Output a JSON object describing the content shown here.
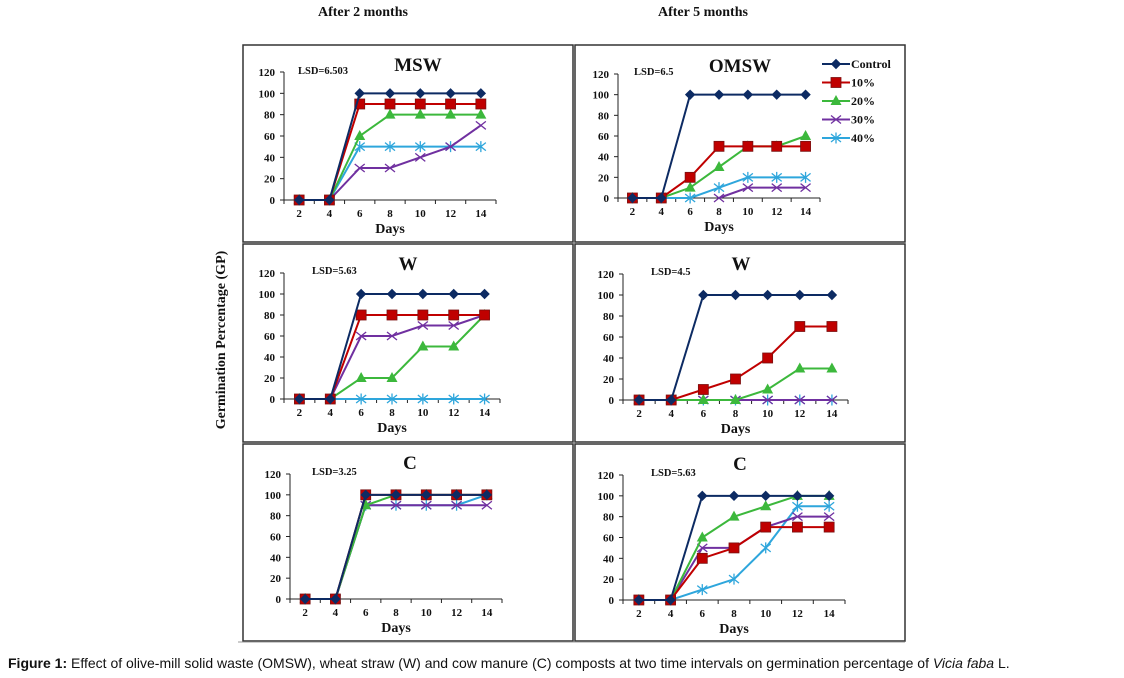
{
  "headers": {
    "left": "After 2 months",
    "right": "After 5 months"
  },
  "shared_ylabel": "Germination Percentage (GP)",
  "caption": {
    "label": "Figure 1:",
    "text_before_italic": " Effect of olive-mill solid waste (OMSW), wheat straw (W) and cow    manure (C) composts at two time intervals on germination percentage of ",
    "italic": "Vicia faba",
    "text_after_italic": " L."
  },
  "legend": {
    "placement": "top-right of OMSW panel",
    "entries": [
      "Control",
      "10%",
      "20%",
      "30%",
      "40%"
    ]
  },
  "series_styles": [
    {
      "name": "Control",
      "color": "#0d2b63",
      "marker": "diamond"
    },
    {
      "name": "10%",
      "color": "#c00000",
      "marker": "square"
    },
    {
      "name": "20%",
      "color": "#3cb83c",
      "marker": "triangle"
    },
    {
      "name": "30%",
      "color": "#7030a0",
      "marker": "x"
    },
    {
      "name": "40%",
      "color": "#2ea6dc",
      "marker": "star"
    }
  ],
  "chart_data": [
    {
      "type": "line",
      "panel": "top-left",
      "period": "After 2 months",
      "title": "MSW",
      "annotation": "LSD=6.503",
      "xlabel": "Days",
      "ylabel": "Germination Percentage (GP)",
      "x": [
        2,
        4,
        6,
        8,
        10,
        12,
        14
      ],
      "ylim": [
        0,
        120
      ],
      "yticks": [
        0,
        20,
        40,
        60,
        80,
        100,
        120
      ],
      "series": [
        {
          "name": "Control",
          "values": [
            0,
            0,
            100,
            100,
            100,
            100,
            100
          ]
        },
        {
          "name": "10%",
          "values": [
            0,
            0,
            90,
            90,
            90,
            90,
            90
          ]
        },
        {
          "name": "20%",
          "values": [
            0,
            0,
            60,
            80,
            80,
            80,
            80
          ]
        },
        {
          "name": "30%",
          "values": [
            0,
            0,
            30,
            30,
            40,
            50,
            70
          ]
        },
        {
          "name": "40%",
          "values": [
            0,
            0,
            50,
            50,
            50,
            50,
            50
          ]
        }
      ]
    },
    {
      "type": "line",
      "panel": "top-right",
      "period": "After 5 months",
      "title": "OMSW",
      "annotation": "LSD=6.5",
      "xlabel": "Days",
      "ylabel": "Germination Percentage (GP)",
      "x": [
        2,
        4,
        6,
        8,
        10,
        12,
        14
      ],
      "ylim": [
        0,
        120
      ],
      "yticks": [
        0,
        20,
        40,
        60,
        80,
        100,
        120
      ],
      "series": [
        {
          "name": "Control",
          "values": [
            0,
            0,
            100,
            100,
            100,
            100,
            100
          ]
        },
        {
          "name": "10%",
          "values": [
            0,
            0,
            20,
            50,
            50,
            50,
            50
          ]
        },
        {
          "name": "20%",
          "values": [
            0,
            0,
            10,
            30,
            50,
            50,
            60
          ]
        },
        {
          "name": "30%",
          "values": [
            null,
            null,
            null,
            0,
            10,
            10,
            10
          ]
        },
        {
          "name": "40%",
          "values": [
            0,
            0,
            0,
            10,
            20,
            20,
            20
          ]
        }
      ]
    },
    {
      "type": "line",
      "panel": "middle-left",
      "period": "After 2 months",
      "title": "W",
      "annotation": "LSD=5.63",
      "xlabel": "Days",
      "ylabel": "Germination Percentage (GP)",
      "x": [
        2,
        4,
        6,
        8,
        10,
        12,
        14
      ],
      "ylim": [
        0,
        120
      ],
      "yticks": [
        0,
        20,
        40,
        60,
        80,
        100,
        120
      ],
      "series": [
        {
          "name": "Control",
          "values": [
            0,
            0,
            100,
            100,
            100,
            100,
            100
          ]
        },
        {
          "name": "10%",
          "values": [
            0,
            0,
            80,
            80,
            80,
            80,
            80
          ]
        },
        {
          "name": "20%",
          "values": [
            0,
            0,
            20,
            20,
            50,
            50,
            80
          ]
        },
        {
          "name": "30%",
          "values": [
            0,
            0,
            60,
            60,
            70,
            70,
            80
          ]
        },
        {
          "name": "40%",
          "values": [
            0,
            0,
            0,
            0,
            0,
            0,
            0
          ]
        }
      ]
    },
    {
      "type": "line",
      "panel": "middle-right",
      "period": "After 5 months",
      "title": "W",
      "annotation": "LSD=4.5",
      "xlabel": "Days",
      "ylabel": "Germination Percentage (GP)",
      "x": [
        2,
        4,
        6,
        8,
        10,
        12,
        14
      ],
      "ylim": [
        0,
        120
      ],
      "yticks": [
        0,
        20,
        40,
        60,
        80,
        100,
        120
      ],
      "series": [
        {
          "name": "Control",
          "values": [
            0,
            0,
            100,
            100,
            100,
            100,
            100
          ]
        },
        {
          "name": "10%",
          "values": [
            0,
            0,
            10,
            20,
            40,
            70,
            70
          ]
        },
        {
          "name": "20%",
          "values": [
            0,
            0,
            0,
            0,
            10,
            30,
            30
          ]
        },
        {
          "name": "30%",
          "values": [
            0,
            0,
            0,
            0,
            0,
            0,
            0
          ]
        },
        {
          "name": "40%",
          "values": [
            0,
            0,
            0,
            0,
            0,
            0,
            0
          ]
        }
      ]
    },
    {
      "type": "line",
      "panel": "bottom-left",
      "period": "After 2 months",
      "title": "C",
      "annotation": "LSD=3.25",
      "xlabel": "Days",
      "ylabel": "Germination Percentage (GP)",
      "x": [
        2,
        4,
        6,
        8,
        10,
        12,
        14
      ],
      "ylim": [
        0,
        120
      ],
      "yticks": [
        0,
        20,
        40,
        60,
        80,
        100,
        120
      ],
      "series": [
        {
          "name": "Control",
          "values": [
            0,
            0,
            100,
            100,
            100,
            100,
            100
          ]
        },
        {
          "name": "10%",
          "values": [
            0,
            0,
            100,
            100,
            100,
            100,
            100
          ]
        },
        {
          "name": "20%",
          "values": [
            0,
            0,
            90,
            100,
            100,
            100,
            100
          ]
        },
        {
          "name": "30%",
          "values": [
            0,
            0,
            90,
            90,
            90,
            90,
            90
          ]
        },
        {
          "name": "40%",
          "values": [
            0,
            0,
            90,
            90,
            90,
            90,
            100
          ]
        }
      ]
    },
    {
      "type": "line",
      "panel": "bottom-right",
      "period": "After 5 months",
      "title": "C",
      "annotation": "LSD=5.63",
      "xlabel": "Days",
      "ylabel": "Germination Percentage (GP)",
      "x": [
        2,
        4,
        6,
        8,
        10,
        12,
        14
      ],
      "ylim": [
        0,
        120
      ],
      "yticks": [
        0,
        20,
        40,
        60,
        80,
        100,
        120
      ],
      "series": [
        {
          "name": "Control",
          "values": [
            0,
            0,
            100,
            100,
            100,
            100,
            100
          ]
        },
        {
          "name": "10%",
          "values": [
            0,
            0,
            40,
            50,
            70,
            70,
            70
          ]
        },
        {
          "name": "20%",
          "values": [
            0,
            0,
            60,
            80,
            90,
            100,
            100
          ]
        },
        {
          "name": "30%",
          "values": [
            0,
            0,
            50,
            50,
            70,
            80,
            80
          ]
        },
        {
          "name": "40%",
          "values": [
            0,
            0,
            10,
            20,
            50,
            90,
            90
          ]
        }
      ]
    }
  ]
}
